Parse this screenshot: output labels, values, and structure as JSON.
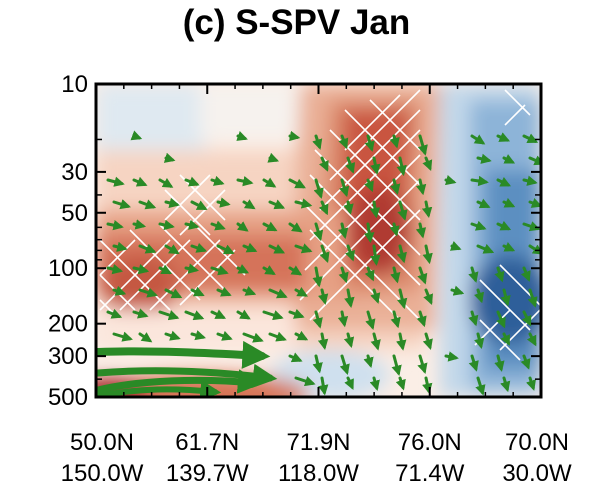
{
  "chart_data": {
    "type": "heatmap",
    "title": "(c) S-SPV Jan",
    "y_axis": {
      "scale": "log",
      "inverted": true,
      "range": [
        10,
        500
      ],
      "ticks": [
        10,
        30,
        50,
        100,
        200,
        300,
        500
      ],
      "tick_labels": [
        "10",
        "30",
        "50",
        "100",
        "200",
        "300",
        "500"
      ]
    },
    "x_axis": {
      "tick_labels_top": [
        "50.0N",
        "61.7N",
        "71.9N",
        "76.0N",
        "70.0N"
      ],
      "tick_labels_bottom": [
        "150.0W",
        "139.7W",
        "118.0W",
        "71.4W",
        "30.0W"
      ]
    },
    "colors": {
      "positive_strong": "#a8292a",
      "positive_mid": "#d2694b",
      "positive_light": "#f3c8ae",
      "positive_faint": "#fbe9df",
      "negative_faint": "#dce9f3",
      "negative_light": "#a9c9e3",
      "negative_mid": "#6699c4",
      "negative_strong": "#336aa3",
      "vector": "#2a8a26",
      "hatch": "#ffffff"
    },
    "overlays": [
      "filled contours",
      "green vectors",
      "white cross-hatching for significance"
    ]
  }
}
